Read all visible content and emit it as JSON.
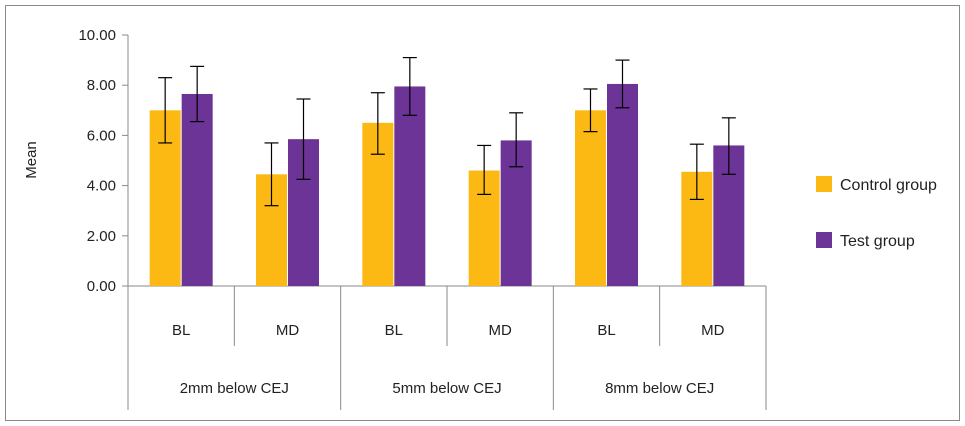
{
  "chart_data": {
    "type": "bar",
    "ylabel": "Mean",
    "ylim": [
      0,
      10
    ],
    "yticks": [
      "0.00",
      "2.00",
      "4.00",
      "6.00",
      "8.00",
      "10.00"
    ],
    "categories": [
      "BL",
      "MD",
      "BL",
      "MD",
      "BL",
      "MD"
    ],
    "groups": [
      {
        "label": "2mm below CEJ",
        "categories": [
          "BL",
          "MD"
        ]
      },
      {
        "label": "5mm below CEJ",
        "categories": [
          "BL",
          "MD"
        ]
      },
      {
        "label": "8mm below CEJ",
        "categories": [
          "BL",
          "MD"
        ]
      }
    ],
    "series": [
      {
        "name": "Control group",
        "color": "#FDB913",
        "values": [
          7.0,
          4.45,
          6.5,
          4.6,
          7.0,
          4.55
        ],
        "error_low": [
          5.7,
          3.2,
          5.25,
          3.65,
          6.15,
          3.45
        ],
        "error_high": [
          8.3,
          5.7,
          7.7,
          5.6,
          7.85,
          5.65
        ]
      },
      {
        "name": "Test group",
        "color": "#6B3496",
        "values": [
          7.65,
          5.85,
          7.95,
          5.8,
          8.05,
          5.6
        ],
        "error_low": [
          6.55,
          4.25,
          6.8,
          4.75,
          7.1,
          4.45
        ],
        "error_high": [
          8.75,
          7.45,
          9.1,
          6.9,
          9.0,
          6.7
        ]
      }
    ],
    "grid": false,
    "legend_position": "right"
  }
}
